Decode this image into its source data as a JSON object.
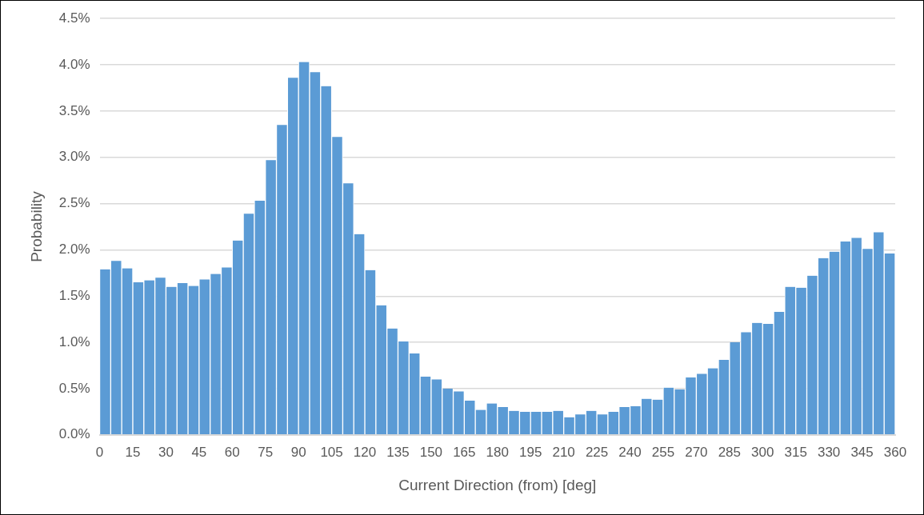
{
  "chart_data": {
    "type": "histogram",
    "xlabel": "Current Direction (from) [deg]",
    "ylabel": "Probability",
    "bins": [
      0,
      5,
      10,
      15,
      20,
      25,
      30,
      35,
      40,
      45,
      50,
      55,
      60,
      65,
      70,
      75,
      80,
      85,
      90,
      95,
      100,
      105,
      110,
      115,
      120,
      125,
      130,
      135,
      140,
      145,
      150,
      155,
      160,
      165,
      170,
      175,
      180,
      185,
      190,
      195,
      200,
      205,
      210,
      215,
      220,
      225,
      230,
      235,
      240,
      245,
      250,
      255,
      260,
      265,
      270,
      275,
      280,
      285,
      290,
      295,
      300,
      305,
      310,
      315,
      320,
      325,
      330,
      335,
      340,
      345,
      350,
      355,
      360
    ],
    "values": [
      1.79,
      1.88,
      1.8,
      1.65,
      1.67,
      1.7,
      1.6,
      1.64,
      1.61,
      1.68,
      1.74,
      1.81,
      2.1,
      2.39,
      2.53,
      2.97,
      3.35,
      3.86,
      4.03,
      3.92,
      3.77,
      3.22,
      2.72,
      2.17,
      1.78,
      1.4,
      1.15,
      1.01,
      0.88,
      0.63,
      0.6,
      0.5,
      0.47,
      0.37,
      0.27,
      0.34,
      0.3,
      0.26,
      0.25,
      0.25,
      0.25,
      0.26,
      0.19,
      0.22,
      0.26,
      0.22,
      0.25,
      0.3,
      0.31,
      0.39,
      0.38,
      0.51,
      0.49,
      0.62,
      0.66,
      0.72,
      0.81,
      1.0,
      1.11,
      1.21,
      1.2,
      1.33,
      1.6,
      1.59,
      1.72,
      1.91,
      1.98,
      2.09,
      2.13,
      2.01,
      2.19,
      1.96
    ],
    "color": "#5b9bd5",
    "xlim": [
      0,
      360
    ],
    "xticks": [
      0,
      15,
      30,
      45,
      60,
      75,
      90,
      105,
      120,
      135,
      150,
      165,
      180,
      195,
      210,
      225,
      240,
      255,
      270,
      285,
      300,
      315,
      330,
      345,
      360
    ],
    "ylim": [
      0,
      4.5
    ],
    "yticks": [
      {
        "value": 0,
        "label": "0.0%"
      },
      {
        "value": 0.5,
        "label": "0.5%"
      },
      {
        "value": 1,
        "label": "1.0%"
      },
      {
        "value": 1.5,
        "label": "1.5%"
      },
      {
        "value": 2,
        "label": "2.0%"
      },
      {
        "value": 2.5,
        "label": "2.5%"
      },
      {
        "value": 3,
        "label": "3.0%"
      },
      {
        "value": 3.5,
        "label": "3.5%"
      },
      {
        "value": 4,
        "label": "4.0%"
      },
      {
        "value": 4.5,
        "label": "4.5%"
      }
    ],
    "grid": "y"
  }
}
